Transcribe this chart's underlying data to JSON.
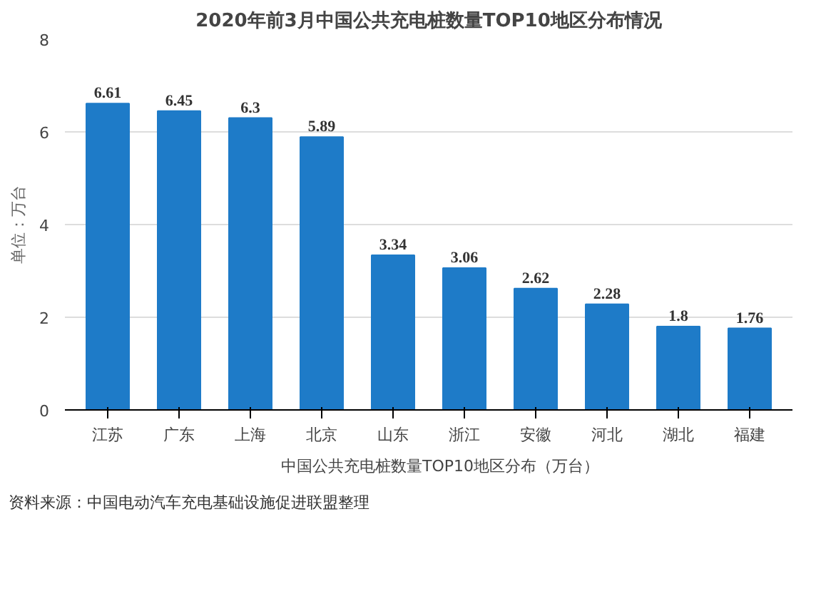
{
  "chart_data": {
    "type": "bar",
    "title": "2020年前3月中国公共充电桩数量TOP10地区分布情况",
    "ylabel": "单位：万台",
    "categories": [
      "江苏",
      "广东",
      "上海",
      "北京",
      "山东",
      "浙江",
      "安徽",
      "河北",
      "湖北",
      "福建"
    ],
    "series": [
      {
        "name": "中国公共充电桩数量TOP10地区分布（万台）",
        "color": "#1e7bc8",
        "values": [
          6.61,
          6.45,
          6.3,
          5.89,
          3.34,
          3.06,
          2.62,
          2.28,
          1.8,
          1.76
        ]
      }
    ],
    "ylim": [
      0,
      8
    ],
    "yticks": [
      0,
      2,
      4,
      6,
      8
    ],
    "grid": "y",
    "legend": "bottom",
    "data_labels": true,
    "annotations": [
      "资料来源：中国电动汽车充电基础设施促进联盟整理"
    ]
  }
}
